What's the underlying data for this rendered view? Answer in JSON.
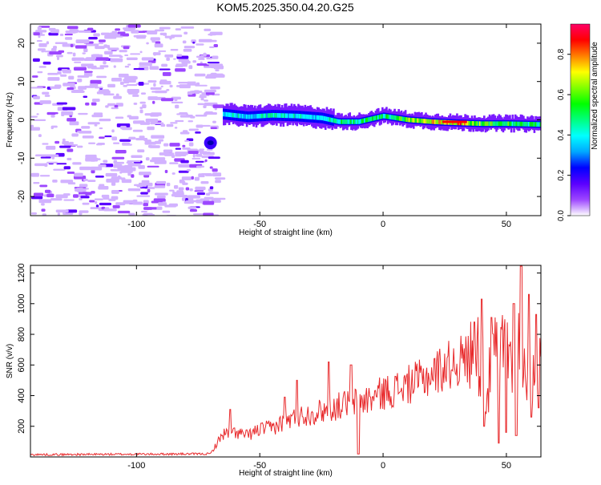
{
  "title": "KOM5.2025.350.04.20.G25",
  "chart_data": [
    {
      "type": "heatmap",
      "xlabel": "Height of straight line (km)",
      "ylabel": "Frequency (Hz)",
      "xlim": [
        -143,
        64
      ],
      "ylim": [
        -25,
        25
      ],
      "xticks": [
        -100,
        -50,
        0,
        50
      ],
      "yticks": [
        -20,
        -10,
        0,
        10,
        20
      ],
      "colorbar": {
        "label": "Normalized spectral amplitude",
        "range": [
          0,
          0.95
        ],
        "ticks": [
          0,
          0.2,
          0.4,
          0.6,
          0.8
        ],
        "colors": [
          "#ffffff",
          "#9d47ff",
          "#5a00ff",
          "#0000ff",
          "#00a8ff",
          "#00ffff",
          "#00ff7f",
          "#00ff00",
          "#7fff00",
          "#ffff00",
          "#ff8000",
          "#ff0000",
          "#ff0066"
        ]
      },
      "ridge": {
        "x": [
          -65,
          -55,
          -45,
          -35,
          -25,
          -18,
          -10,
          0,
          10,
          20,
          30,
          40,
          50,
          64
        ],
        "y": [
          1.5,
          0.8,
          1.2,
          1.0,
          0.5,
          -0.5,
          -0.5,
          1.0,
          0.0,
          -0.5,
          -0.8,
          -1.0,
          -1.0,
          -1.2
        ],
        "amplitude": [
          0.5,
          0.45,
          0.55,
          0.5,
          0.45,
          0.55,
          0.6,
          0.6,
          0.75,
          0.85,
          0.95,
          0.7,
          0.65,
          0.6
        ]
      }
    },
    {
      "type": "line",
      "xlabel": "Height of straight line (km)",
      "ylabel": "SNR (v/v)",
      "xlim": [
        -143,
        64
      ],
      "ylim": [
        0,
        1250
      ],
      "xticks": [
        -100,
        -50,
        0,
        50
      ],
      "yticks": [
        200,
        400,
        600,
        800,
        1000,
        1200
      ],
      "line_color": "#e8292b",
      "envelope": {
        "x": [
          -143,
          -70,
          -65,
          -60,
          -55,
          -50,
          -45,
          -40,
          -35,
          -30,
          -25,
          -20,
          -15,
          -10,
          -5,
          0,
          5,
          10,
          15,
          20,
          25,
          30,
          35,
          38,
          40,
          42,
          45,
          48,
          50,
          53,
          55,
          57,
          60,
          62,
          64
        ],
        "y": [
          15,
          20,
          150,
          160,
          140,
          180,
          190,
          230,
          260,
          280,
          300,
          320,
          350,
          360,
          380,
          420,
          440,
          470,
          500,
          540,
          590,
          620,
          650,
          660,
          650,
          400,
          650,
          700,
          720,
          680,
          720,
          640,
          620,
          650,
          640
        ]
      },
      "peaks": [
        {
          "x": -62,
          "y": 310
        },
        {
          "x": -40,
          "y": 390
        },
        {
          "x": -35,
          "y": 500
        },
        {
          "x": -22,
          "y": 620
        },
        {
          "x": -13,
          "y": 600
        },
        {
          "x": -10,
          "y": 440
        },
        {
          "x": 37,
          "y": 880
        },
        {
          "x": 40,
          "y": 1030
        },
        {
          "x": 44,
          "y": 910
        },
        {
          "x": 47,
          "y": 960
        },
        {
          "x": 50,
          "y": 1080
        },
        {
          "x": 53,
          "y": 1000
        },
        {
          "x": 56,
          "y": 1245
        },
        {
          "x": 59,
          "y": 1060
        },
        {
          "x": 62,
          "y": 930
        }
      ],
      "dips": [
        {
          "x": -10,
          "y": 20
        },
        {
          "x": 41,
          "y": 200
        },
        {
          "x": 47,
          "y": 90
        },
        {
          "x": 50,
          "y": 160
        },
        {
          "x": 54,
          "y": 140
        },
        {
          "x": 60,
          "y": 260
        },
        {
          "x": 63,
          "y": 320
        }
      ]
    }
  ]
}
